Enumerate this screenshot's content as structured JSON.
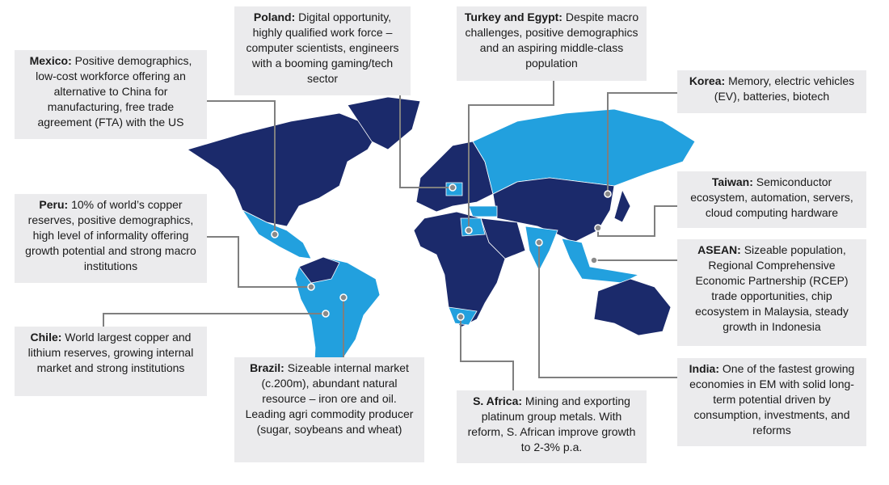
{
  "callouts": [
    {
      "name": "Poland:",
      "text": "Digital opportunity, highly qualified work force – computer scientists, engineers with a booming gaming/tech sector"
    },
    {
      "name": "Turkey and Egypt:",
      "text": "Despite macro challenges, positive demographics and an aspiring middle-class population"
    },
    {
      "name": "Mexico:",
      "text": "Positive demographics, low-cost workforce offering an alternative to China for manufacturing, free trade agreement (FTA) with the US"
    },
    {
      "name": "Korea:",
      "text": "Memory, electric vehicles (EV), batteries, biotech"
    },
    {
      "name": "Taiwan:",
      "text": "Semiconductor ecosystem, automation, servers, cloud computing hardware"
    },
    {
      "name": "Peru:",
      "text": "10% of world’s copper reserves, positive demographics, high level of informality offering growth potential and strong macro institutions"
    },
    {
      "name": "ASEAN:",
      "text": "Sizeable population, Regional Comprehensive Economic Partnership (RCEP) trade opportunities, chip ecosystem in Malaysia, steady growth in Indonesia"
    },
    {
      "name": "Chile:",
      "text": "World largest copper and lithium reserves, growing internal market and strong institutions"
    },
    {
      "name": "Brazil:",
      "text": "Sizeable internal market (c.200m), abundant natural resource – iron ore and oil. Leading agri commodity producer (sugar, soybeans and wheat)"
    },
    {
      "name": "India:",
      "text": "One of the fastest growing economies in EM with solid long-term potential driven by consumption, investments, and reforms"
    },
    {
      "name": "S. Africa:",
      "text": "Mining and exporting platinum group metals. With reform, S. African improve growth to 2-3% p.a."
    }
  ]
}
